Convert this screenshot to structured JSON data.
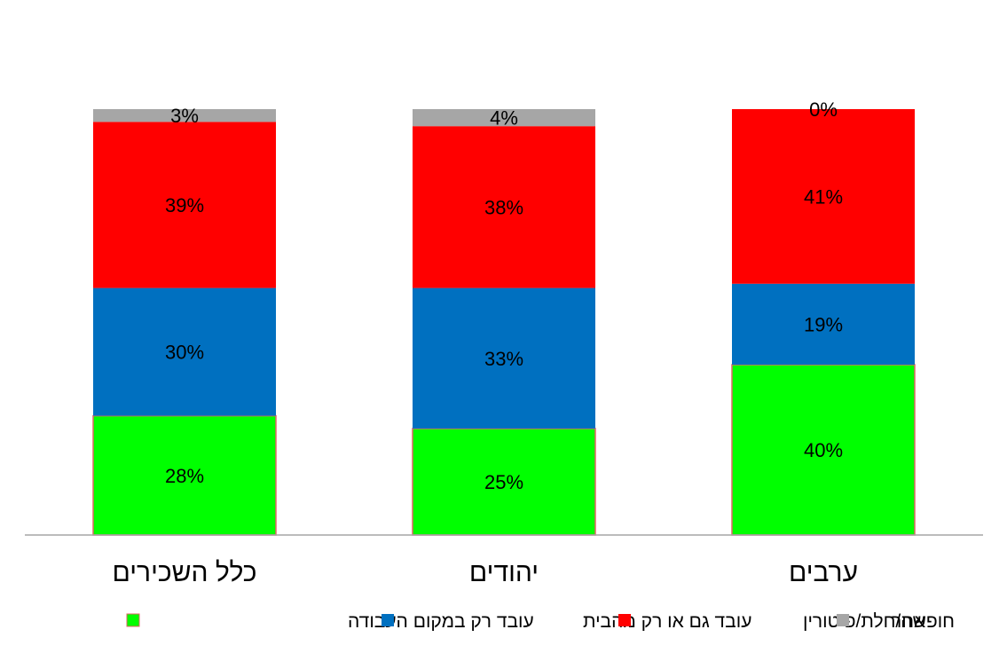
{
  "chart_data": {
    "type": "bar",
    "stacked": true,
    "percent": true,
    "categories": [
      "כלל השכירים",
      "יהודים",
      "ערבים"
    ],
    "series": [
      {
        "name": "עובד רק במקום העבודה",
        "values": [
          28,
          25,
          40
        ],
        "color": "#00FF00"
      },
      {
        "name": "עובד גם או רק מהבית",
        "values": [
          30,
          33,
          19
        ],
        "color": "#0070C0"
      },
      {
        "name": "חופשה/חלת/פיטורין",
        "values": [
          39,
          38,
          41
        ],
        "color": "#FF0000"
      },
      {
        "name": "אחר",
        "values": [
          3,
          4,
          0
        ],
        "color": "#A6A6A6"
      }
    ],
    "ylim": [
      0,
      100
    ],
    "grid": false,
    "legend_position": "bottom",
    "title": "",
    "xlabel": "",
    "ylabel": ""
  },
  "colors": {
    "axis": "#A6A6A6",
    "label_text": "#000000",
    "green_border": "#E06666"
  }
}
